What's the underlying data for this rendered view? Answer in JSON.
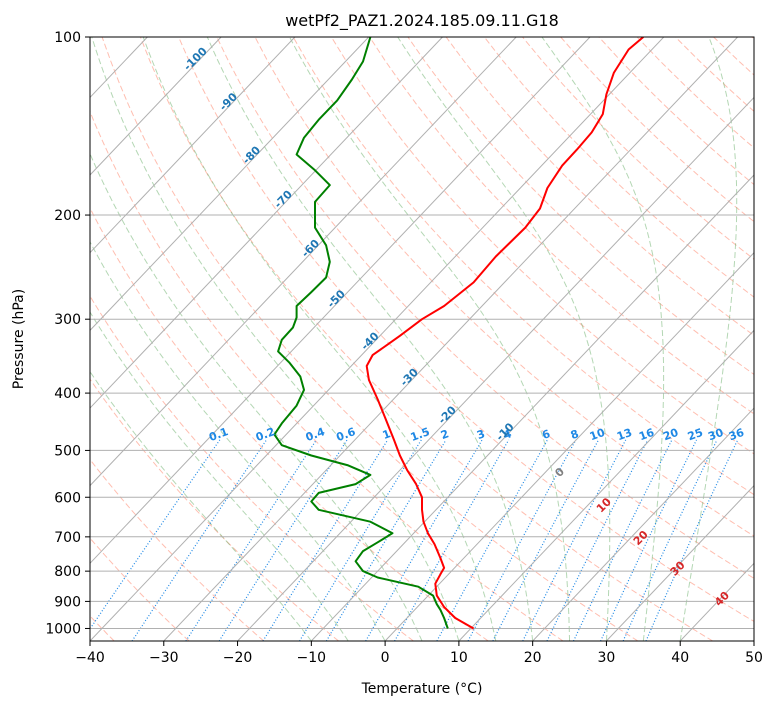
{
  "chart_data": {
    "type": "line",
    "title": "wetPf2_PAZ1.2024.185.09.11.G18",
    "xlabel": "Temperature (°C)",
    "ylabel": "Pressure (hPa)",
    "xlim": [
      -40,
      50
    ],
    "ylim": [
      1050,
      100
    ],
    "y_scale": "log",
    "grid": true,
    "x_ticks": [
      -40,
      -30,
      -20,
      -10,
      0,
      10,
      20,
      30,
      40,
      50
    ],
    "y_ticks": [
      1000,
      900,
      800,
      700,
      600,
      500,
      400,
      300,
      200,
      100
    ],
    "series": [
      {
        "role": "temperature",
        "color": "#ff0000",
        "points": [
          [
            12,
            1000
          ],
          [
            9.5,
            960
          ],
          [
            8,
            920
          ],
          [
            7,
            880
          ],
          [
            6.8,
            840
          ],
          [
            7.5,
            810
          ],
          [
            8,
            790
          ],
          [
            7.5,
            760
          ],
          [
            6.7,
            720
          ],
          [
            5.8,
            690
          ],
          [
            5.2,
            660
          ],
          [
            5,
            630
          ],
          [
            5,
            600
          ],
          [
            4.2,
            570
          ],
          [
            3,
            540
          ],
          [
            2,
            510
          ],
          [
            1.2,
            480
          ],
          [
            0,
            440
          ],
          [
            -1,
            410
          ],
          [
            -2.2,
            380
          ],
          [
            -2.5,
            360
          ],
          [
            -1.7,
            345
          ],
          [
            0.5,
            330
          ],
          [
            2,
            320
          ],
          [
            5,
            300
          ],
          [
            8,
            285
          ],
          [
            12,
            260
          ],
          [
            15,
            235
          ],
          [
            19,
            210
          ],
          [
            21,
            195
          ],
          [
            22,
            180
          ],
          [
            24,
            165
          ],
          [
            26,
            155
          ],
          [
            28,
            145
          ],
          [
            29.5,
            135
          ],
          [
            30,
            125
          ],
          [
            31,
            115
          ],
          [
            33,
            105
          ],
          [
            35,
            100
          ]
        ]
      },
      {
        "role": "dewpoint",
        "color": "#008000",
        "points": [
          [
            8.5,
            1000
          ],
          [
            8,
            960
          ],
          [
            7.5,
            930
          ],
          [
            7,
            910
          ],
          [
            6.5,
            880
          ],
          [
            4.5,
            850
          ],
          [
            -1,
            820
          ],
          [
            -3,
            800
          ],
          [
            -4,
            770
          ],
          [
            -3,
            740
          ],
          [
            -1,
            715
          ],
          [
            1,
            690
          ],
          [
            -2,
            660
          ],
          [
            -9,
            630
          ],
          [
            -10,
            610
          ],
          [
            -9,
            590
          ],
          [
            -4,
            570
          ],
          [
            -2,
            550
          ],
          [
            -5,
            530
          ],
          [
            -10,
            510
          ],
          [
            -14,
            490
          ],
          [
            -15,
            470
          ],
          [
            -14,
            450
          ],
          [
            -12,
            420
          ],
          [
            -11,
            395
          ],
          [
            -11.5,
            375
          ],
          [
            -13,
            355
          ],
          [
            -14.5,
            340
          ],
          [
            -14,
            325
          ],
          [
            -12.5,
            310
          ],
          [
            -12,
            298
          ],
          [
            -12,
            285
          ],
          [
            -10,
            270
          ],
          [
            -8,
            255
          ],
          [
            -7.5,
            240
          ],
          [
            -8,
            225
          ],
          [
            -9.5,
            210
          ],
          [
            -9.5,
            200
          ],
          [
            -9.5,
            190
          ],
          [
            -7.5,
            178
          ],
          [
            -9.5,
            168
          ],
          [
            -12,
            158
          ],
          [
            -11,
            148
          ],
          [
            -9,
            138
          ],
          [
            -6.5,
            128
          ],
          [
            -4.5,
            118
          ],
          [
            -3,
            110
          ],
          [
            -2,
            100
          ]
        ]
      }
    ],
    "isotherm_labels": [
      "-100",
      "-90",
      "-80",
      "-70",
      "-60",
      "-50",
      "-40",
      "-30",
      "-20",
      "-10"
    ],
    "mixing_ratio_labels": [
      "0.1",
      "0.2",
      "0.4",
      "0.6",
      "1",
      "1.5",
      "2",
      "3",
      "4",
      "6",
      "8",
      "10",
      "13",
      "16",
      "20",
      "25",
      "30",
      "36"
    ],
    "moist_adiabat_labels": [
      "0",
      "10",
      "20",
      "30",
      "40"
    ],
    "colors": {
      "isotherm": "#b0b0b0",
      "isotherm_label": "#1f77b4",
      "mixing_ratio": "#1e88e5",
      "dry_adiabat": "#ff6f4f",
      "moist_adiabat": "#6ab06a",
      "moist_label": "#d62728",
      "zero_label": "#808080"
    }
  }
}
